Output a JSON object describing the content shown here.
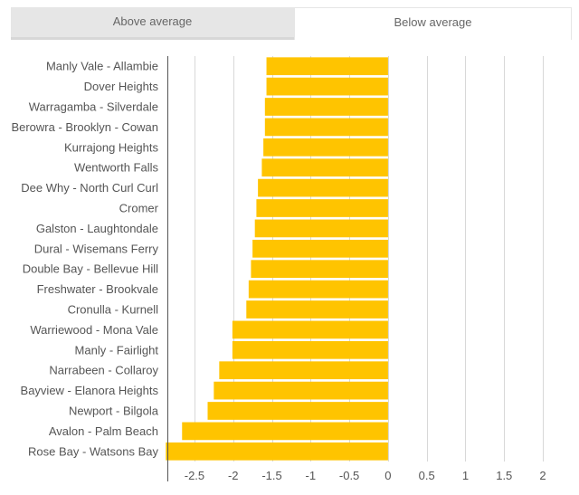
{
  "tabs": {
    "left_label": "Above average",
    "right_label": "Below average"
  },
  "chart_data": {
    "type": "bar",
    "orientation": "horizontal",
    "title": "",
    "xlabel": "",
    "ylabel": "",
    "xlim": [
      -2.85,
      2.35
    ],
    "xticks": [
      -2.5,
      -2,
      -1.5,
      -1,
      -0.5,
      0,
      0.5,
      1,
      1.5,
      2
    ],
    "xtick_labels": [
      "-2.5",
      "-2",
      "-1.5",
      "-1",
      "-0.5",
      "0",
      "0.5",
      "1",
      "1.5",
      "2"
    ],
    "grid": true,
    "bar_color": "#ffc400",
    "categories": [
      "Manly Vale - Allambie",
      "Dover Heights",
      "Warragamba - Silverdale",
      "Berowra - Brooklyn - Cowan",
      "Kurrajong Heights",
      "Wentworth Falls",
      "Dee Why - North Curl Curl",
      "Cromer",
      "Galston - Laughtondale",
      "Dural - Wisemans Ferry",
      "Double Bay - Bellevue Hill",
      "Freshwater - Brookvale",
      "Cronulla - Kurnell",
      "Warriewood - Mona Vale",
      "Manly - Fairlight",
      "Narrabeen - Collaroy",
      "Bayview - Elanora Heights",
      "Newport - Bilgola",
      "Avalon - Palm Beach",
      "Rose Bay - Watsons Bay"
    ],
    "values": [
      -1.57,
      -1.57,
      -1.59,
      -1.59,
      -1.61,
      -1.63,
      -1.68,
      -1.7,
      -1.72,
      -1.75,
      -1.77,
      -1.8,
      -1.83,
      -2.01,
      -2.01,
      -2.18,
      -2.25,
      -2.33,
      -2.66,
      -2.87
    ]
  }
}
